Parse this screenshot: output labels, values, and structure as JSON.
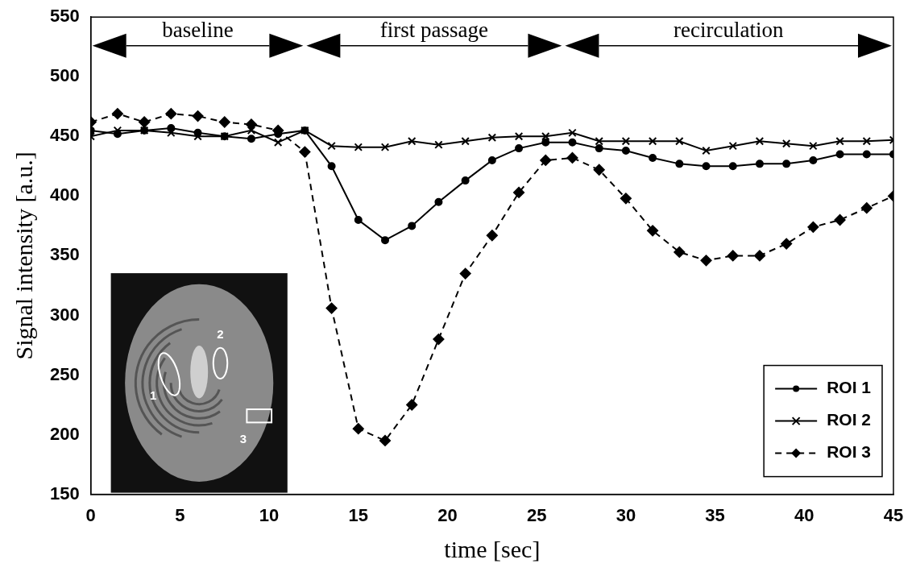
{
  "chart_data": {
    "type": "line",
    "x_label": "time [sec]",
    "y_label": "Signal intensity [a.u.]",
    "x": [
      0,
      1.5,
      3,
      4.5,
      6,
      7.5,
      9,
      10.5,
      12,
      13.5,
      15,
      16.5,
      18,
      19.5,
      21,
      22.5,
      24,
      25.5,
      27,
      28.5,
      30,
      31.5,
      33,
      34.5,
      36,
      37.5,
      39,
      40.5,
      42,
      43.5,
      45
    ],
    "series": [
      {
        "name": "ROI 1",
        "color": "#000000",
        "marker": "circle",
        "line_style": "solid",
        "values": [
          455,
          452,
          455,
          457,
          453,
          450,
          448,
          452,
          455,
          425,
          380,
          363,
          375,
          395,
          413,
          430,
          440,
          445,
          445,
          440,
          438,
          432,
          427,
          425,
          425,
          427,
          427,
          430,
          435,
          435,
          435
        ]
      },
      {
        "name": "ROI 2",
        "color": "#000000",
        "marker": "x",
        "line_style": "solid",
        "values": [
          450,
          455,
          455,
          453,
          450,
          450,
          455,
          445,
          455,
          442,
          441,
          441,
          446,
          443,
          446,
          449,
          450,
          450,
          453,
          446,
          446,
          446,
          446,
          438,
          442,
          446,
          444,
          442,
          446,
          446,
          447
        ]
      },
      {
        "name": "ROI 3",
        "color": "#000000",
        "marker": "diamond",
        "line_style": "dashed",
        "values": [
          462,
          469,
          462,
          469,
          467,
          462,
          460,
          455,
          437,
          306,
          205,
          195,
          225,
          280,
          335,
          367,
          403,
          430,
          432,
          422,
          398,
          371,
          353,
          346,
          350,
          350,
          360,
          374,
          380,
          390,
          400
        ]
      }
    ],
    "xlim": [
      0,
      45
    ],
    "xticks": [
      0,
      5,
      10,
      15,
      20,
      25,
      30,
      35,
      40,
      45
    ],
    "ylim": [
      150,
      550
    ],
    "yticks": [
      150,
      200,
      250,
      300,
      350,
      400,
      450,
      500,
      550
    ],
    "grid": false,
    "legend": "lower right",
    "annotations": [
      {
        "text": "baseline",
        "x": [
          0,
          12
        ],
        "y": 526
      },
      {
        "text": "first passage",
        "x": [
          12,
          26.5
        ],
        "y": 526
      },
      {
        "text": "recirculation",
        "x": [
          26.5,
          45
        ],
        "y": 526
      }
    ],
    "inset": {
      "roi_labels": [
        "1",
        "2",
        "3"
      ]
    }
  }
}
